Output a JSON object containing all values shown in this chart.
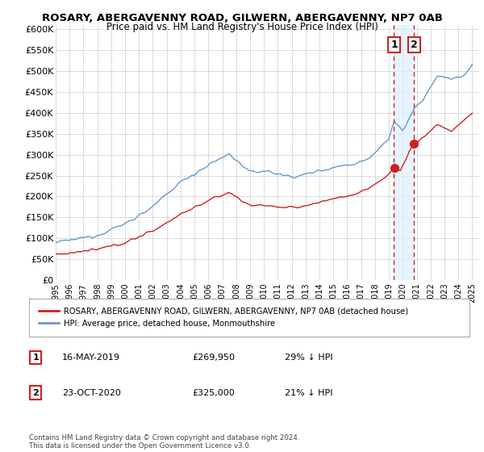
{
  "title": "ROSARY, ABERGAVENNY ROAD, GILWERN, ABERGAVENNY, NP7 0AB",
  "subtitle": "Price paid vs. HM Land Registry's House Price Index (HPI)",
  "ylabel_ticks": [
    "£0",
    "£50K",
    "£100K",
    "£150K",
    "£200K",
    "£250K",
    "£300K",
    "£350K",
    "£400K",
    "£450K",
    "£500K",
    "£550K",
    "£600K"
  ],
  "ytick_values": [
    0,
    50000,
    100000,
    150000,
    200000,
    250000,
    300000,
    350000,
    400000,
    450000,
    500000,
    550000,
    600000
  ],
  "ylim": [
    0,
    610000
  ],
  "xlim_start": 1995.0,
  "xlim_end": 2025.5,
  "hpi_color": "#6699cc",
  "property_color": "#cc2222",
  "transaction1_date": 2019.37,
  "transaction1_price": 269950,
  "transaction2_date": 2020.81,
  "transaction2_price": 325000,
  "legend_property": "ROSARY, ABERGAVENNY ROAD, GILWERN, ABERGAVENNY, NP7 0AB (detached house)",
  "legend_hpi": "HPI: Average price, detached house, Monmouthshire",
  "annotation1": "16-MAY-2019",
  "annotation1_price": "£269,950",
  "annotation1_pct": "29% ↓ HPI",
  "annotation2": "23-OCT-2020",
  "annotation2_price": "£325,000",
  "annotation2_pct": "21% ↓ HPI",
  "footer": "Contains HM Land Registry data © Crown copyright and database right 2024.\nThis data is licensed under the Open Government Licence v3.0.",
  "background_color": "#ffffff",
  "grid_color": "#cccccc"
}
